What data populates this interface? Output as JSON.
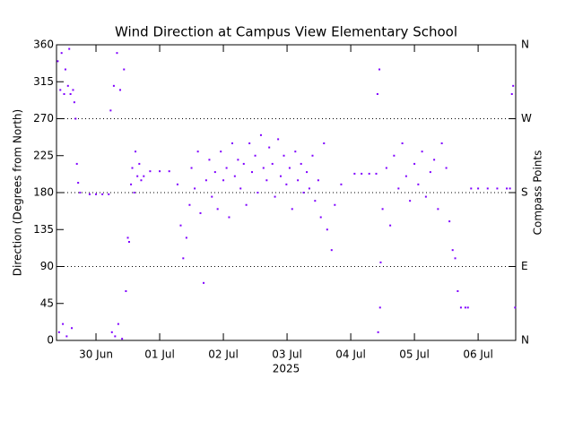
{
  "chart_data": {
    "type": "scatter",
    "title": "Wind Direction at Campus View Elementary School",
    "ylabel": "Direction (Degrees from North)",
    "y2label": "Compass Points",
    "xlabel": "2025",
    "color": "#7f00ff",
    "xlim": [
      -0.62,
      6.59
    ],
    "xticks": [
      {
        "value": 0,
        "label": "30 Jun"
      },
      {
        "value": 1,
        "label": "01 Jul"
      },
      {
        "value": 2,
        "label": "02 Jul"
      },
      {
        "value": 3,
        "label": "03 Jul"
      },
      {
        "value": 4,
        "label": "04 Jul"
      },
      {
        "value": 5,
        "label": "05 Jul"
      },
      {
        "value": 6,
        "label": "06 Jul"
      }
    ],
    "ylim": [
      0,
      360
    ],
    "yticks": [
      0,
      45,
      90,
      135,
      180,
      225,
      270,
      315,
      360
    ],
    "y2lim": [
      0,
      360
    ],
    "y2ticks": [
      {
        "value": 0,
        "label": "N"
      },
      {
        "value": 90,
        "label": "E"
      },
      {
        "value": 180,
        "label": "S"
      },
      {
        "value": 270,
        "label": "W"
      },
      {
        "value": 360,
        "label": "N"
      }
    ],
    "y2grid": true,
    "x": [
      -0.6,
      -0.58,
      -0.56,
      -0.54,
      -0.52,
      -0.5,
      -0.48,
      -0.46,
      -0.44,
      -0.42,
      -0.4,
      -0.38,
      -0.36,
      -0.34,
      -0.32,
      -0.3,
      -0.28,
      -0.25,
      -0.1,
      0,
      0.1,
      0.2,
      0.23,
      0.25,
      0.28,
      0.3,
      0.33,
      0.35,
      0.38,
      0.41,
      0.44,
      0.47,
      0.5,
      0.52,
      0.55,
      0.57,
      0.6,
      0.62,
      0.65,
      0.68,
      0.71,
      0.75,
      0.85,
      1.0,
      1.15,
      1.28,
      1.33,
      1.37,
      1.42,
      1.47,
      1.5,
      1.55,
      1.6,
      1.64,
      1.69,
      1.73,
      1.78,
      1.82,
      1.87,
      1.91,
      1.96,
      2.0,
      2.05,
      2.09,
      2.14,
      2.18,
      2.23,
      2.27,
      2.32,
      2.36,
      2.41,
      2.45,
      2.5,
      2.54,
      2.59,
      2.63,
      2.68,
      2.72,
      2.77,
      2.81,
      2.86,
      2.9,
      2.95,
      2.99,
      3.04,
      3.08,
      3.13,
      3.17,
      3.22,
      3.26,
      3.31,
      3.35,
      3.4,
      3.44,
      3.49,
      3.53,
      3.58,
      3.63,
      3.7,
      3.75,
      3.85,
      4.06,
      4.17,
      4.29,
      4.4,
      4.42,
      4.43,
      4.45,
      4.46,
      4.47,
      4.5,
      4.56,
      4.62,
      4.68,
      4.75,
      4.81,
      4.87,
      4.93,
      5.0,
      5.06,
      5.12,
      5.18,
      5.25,
      5.31,
      5.37,
      5.43,
      5.5,
      5.55,
      5.6,
      5.64,
      5.68,
      5.73,
      5.8,
      5.84,
      5.89,
      6.0,
      6.15,
      6.3,
      6.45,
      6.5,
      6.53,
      6.55,
      6.58
    ],
    "values": [
      340,
      10,
      305,
      350,
      20,
      300,
      330,
      5,
      310,
      355,
      300,
      15,
      305,
      290,
      270,
      215,
      192,
      180,
      178,
      178,
      178,
      178,
      280,
      10,
      310,
      5,
      350,
      20,
      305,
      2,
      330,
      60,
      125,
      120,
      190,
      210,
      180,
      230,
      200,
      215,
      195,
      200,
      206,
      206,
      206,
      190,
      140,
      100,
      125,
      165,
      210,
      185,
      230,
      155,
      70,
      195,
      220,
      175,
      205,
      160,
      230,
      195,
      210,
      150,
      240,
      200,
      220,
      185,
      215,
      165,
      240,
      205,
      225,
      180,
      250,
      210,
      195,
      235,
      215,
      175,
      245,
      200,
      225,
      190,
      210,
      160,
      230,
      195,
      215,
      180,
      205,
      185,
      225,
      170,
      195,
      150,
      240,
      135,
      110,
      165,
      190,
      203,
      203,
      203,
      203,
      300,
      10,
      330,
      40,
      95,
      160,
      210,
      140,
      225,
      185,
      240,
      200,
      170,
      215,
      190,
      230,
      175,
      205,
      220,
      160,
      240,
      210,
      145,
      110,
      100,
      60,
      40,
      40,
      40,
      185,
      185,
      185,
      185,
      185,
      185,
      300,
      310,
      40
    ]
  }
}
